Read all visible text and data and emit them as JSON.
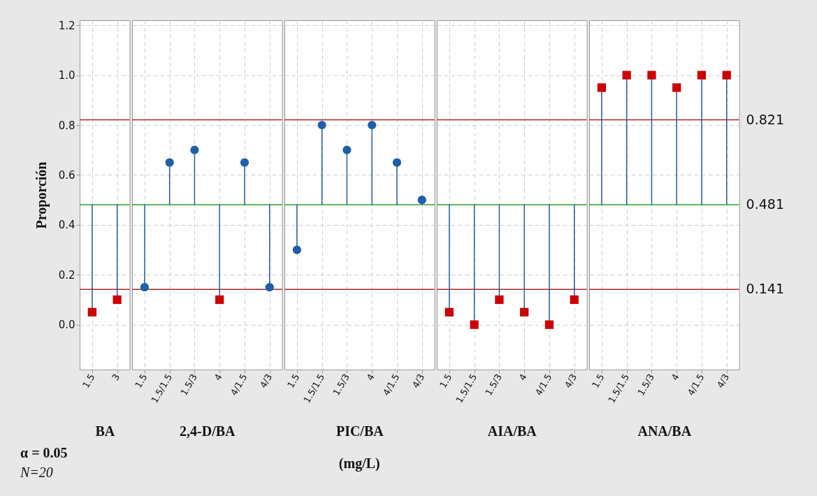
{
  "chart_data": [
    {
      "type": "lollipop",
      "xlabel": "BA",
      "ylabel": "Proporción",
      "categories": [
        "1.5",
        "3"
      ],
      "series": [
        {
          "color": "#cc0000",
          "marker": "square",
          "values": [
            0.05,
            0.1
          ]
        }
      ],
      "ref_lines": [
        {
          "axis": "y",
          "value": 0.821,
          "color": "#a52a2a"
        },
        {
          "axis": "y",
          "value": 0.481,
          "color": "#2ca02c"
        },
        {
          "axis": "y",
          "value": 0.141,
          "color": "#a52a2a"
        }
      ],
      "ylim": [
        -0.18,
        1.22
      ],
      "yticks": [
        {
          "value": 0,
          "label": "0.0"
        },
        0.2,
        0.4,
        0.6,
        0.8,
        {
          "value": 1,
          "label": "1.0"
        },
        1.2
      ],
      "grid": true,
      "annotations": [
        "α = 0.05",
        "N=20"
      ]
    },
    {
      "type": "lollipop",
      "xlabel": "2,4-D/BA",
      "categories": [
        "1.5",
        "1.5/1.5",
        "1.5/3",
        "4",
        "4/1.5",
        "4/3"
      ],
      "series": [
        {
          "color": "#1f5fa8",
          "marker": "circle",
          "values": [
            0.15,
            0.65,
            0.7,
            null,
            0.65,
            0.15
          ]
        },
        {
          "color": "#cc0000",
          "marker": "square",
          "values": [
            null,
            null,
            null,
            0.1,
            null,
            null
          ]
        }
      ],
      "ref_lines": [
        {
          "axis": "y",
          "value": 0.821,
          "color": "#a52a2a"
        },
        {
          "axis": "y",
          "value": 0.481,
          "color": "#2ca02c"
        },
        {
          "axis": "y",
          "value": 0.141,
          "color": "#a52a2a"
        }
      ],
      "ylim": [
        -0.18,
        1.22
      ],
      "grid": true,
      "tick_labels": "x"
    },
    {
      "type": "lollipop",
      "xlabel": "PIC/BA",
      "categories": [
        "1.5",
        "1.5/1.5",
        "1.5/3",
        "4",
        "4/1.5",
        "4/3"
      ],
      "series": [
        {
          "color": "#1f5fa8",
          "marker": "circle",
          "values": [
            0.3,
            0.8,
            0.7,
            0.8,
            0.65,
            0.5
          ]
        }
      ],
      "ref_lines": [
        {
          "axis": "y",
          "value": 0.821,
          "color": "#a52a2a"
        },
        {
          "axis": "y",
          "value": 0.481,
          "color": "#2ca02c"
        },
        {
          "axis": "y",
          "value": 0.141,
          "color": "#a52a2a"
        }
      ],
      "ylim": [
        -0.18,
        1.22
      ],
      "grid": true,
      "tick_labels": "x",
      "annotations": [
        "(mg/L)"
      ]
    },
    {
      "type": "lollipop",
      "xlabel": "AIA/BA",
      "categories": [
        "1.5",
        "1.5/1.5",
        "1.5/3",
        "4",
        "4/1.5",
        "4/3"
      ],
      "series": [
        {
          "color": "#cc0000",
          "marker": "square",
          "values": [
            0.05,
            0.0,
            0.1,
            0.05,
            0.0,
            0.1
          ]
        }
      ],
      "ref_lines": [
        {
          "axis": "y",
          "value": 0.821,
          "color": "#a52a2a"
        },
        {
          "axis": "y",
          "value": 0.481,
          "color": "#2ca02c"
        },
        {
          "axis": "y",
          "value": 0.141,
          "color": "#a52a2a"
        }
      ],
      "ylim": [
        -0.18,
        1.22
      ],
      "grid": true,
      "tick_labels": "x"
    },
    {
      "type": "lollipop",
      "xlabel": "ANA/BA",
      "categories": [
        "1.5",
        "1.5/1.5",
        "1.5/3",
        "4",
        "4/1.5",
        "4/3"
      ],
      "series": [
        {
          "color": "#cc0000",
          "marker": "square",
          "values": [
            0.95,
            1.0,
            1.0,
            0.95,
            1.0,
            1.0
          ]
        }
      ],
      "ref_lines": [
        {
          "axis": "y",
          "value": 0.821,
          "label": "0.821",
          "color": "#a52a2a"
        },
        {
          "axis": "y",
          "value": 0.481,
          "label": "0.481",
          "color": "#2ca02c"
        },
        {
          "axis": "y",
          "value": 0.141,
          "label": "0.141",
          "color": "#a52a2a"
        }
      ],
      "ylim": [
        -0.18,
        1.22
      ],
      "grid": true,
      "tick_labels": "x"
    }
  ]
}
